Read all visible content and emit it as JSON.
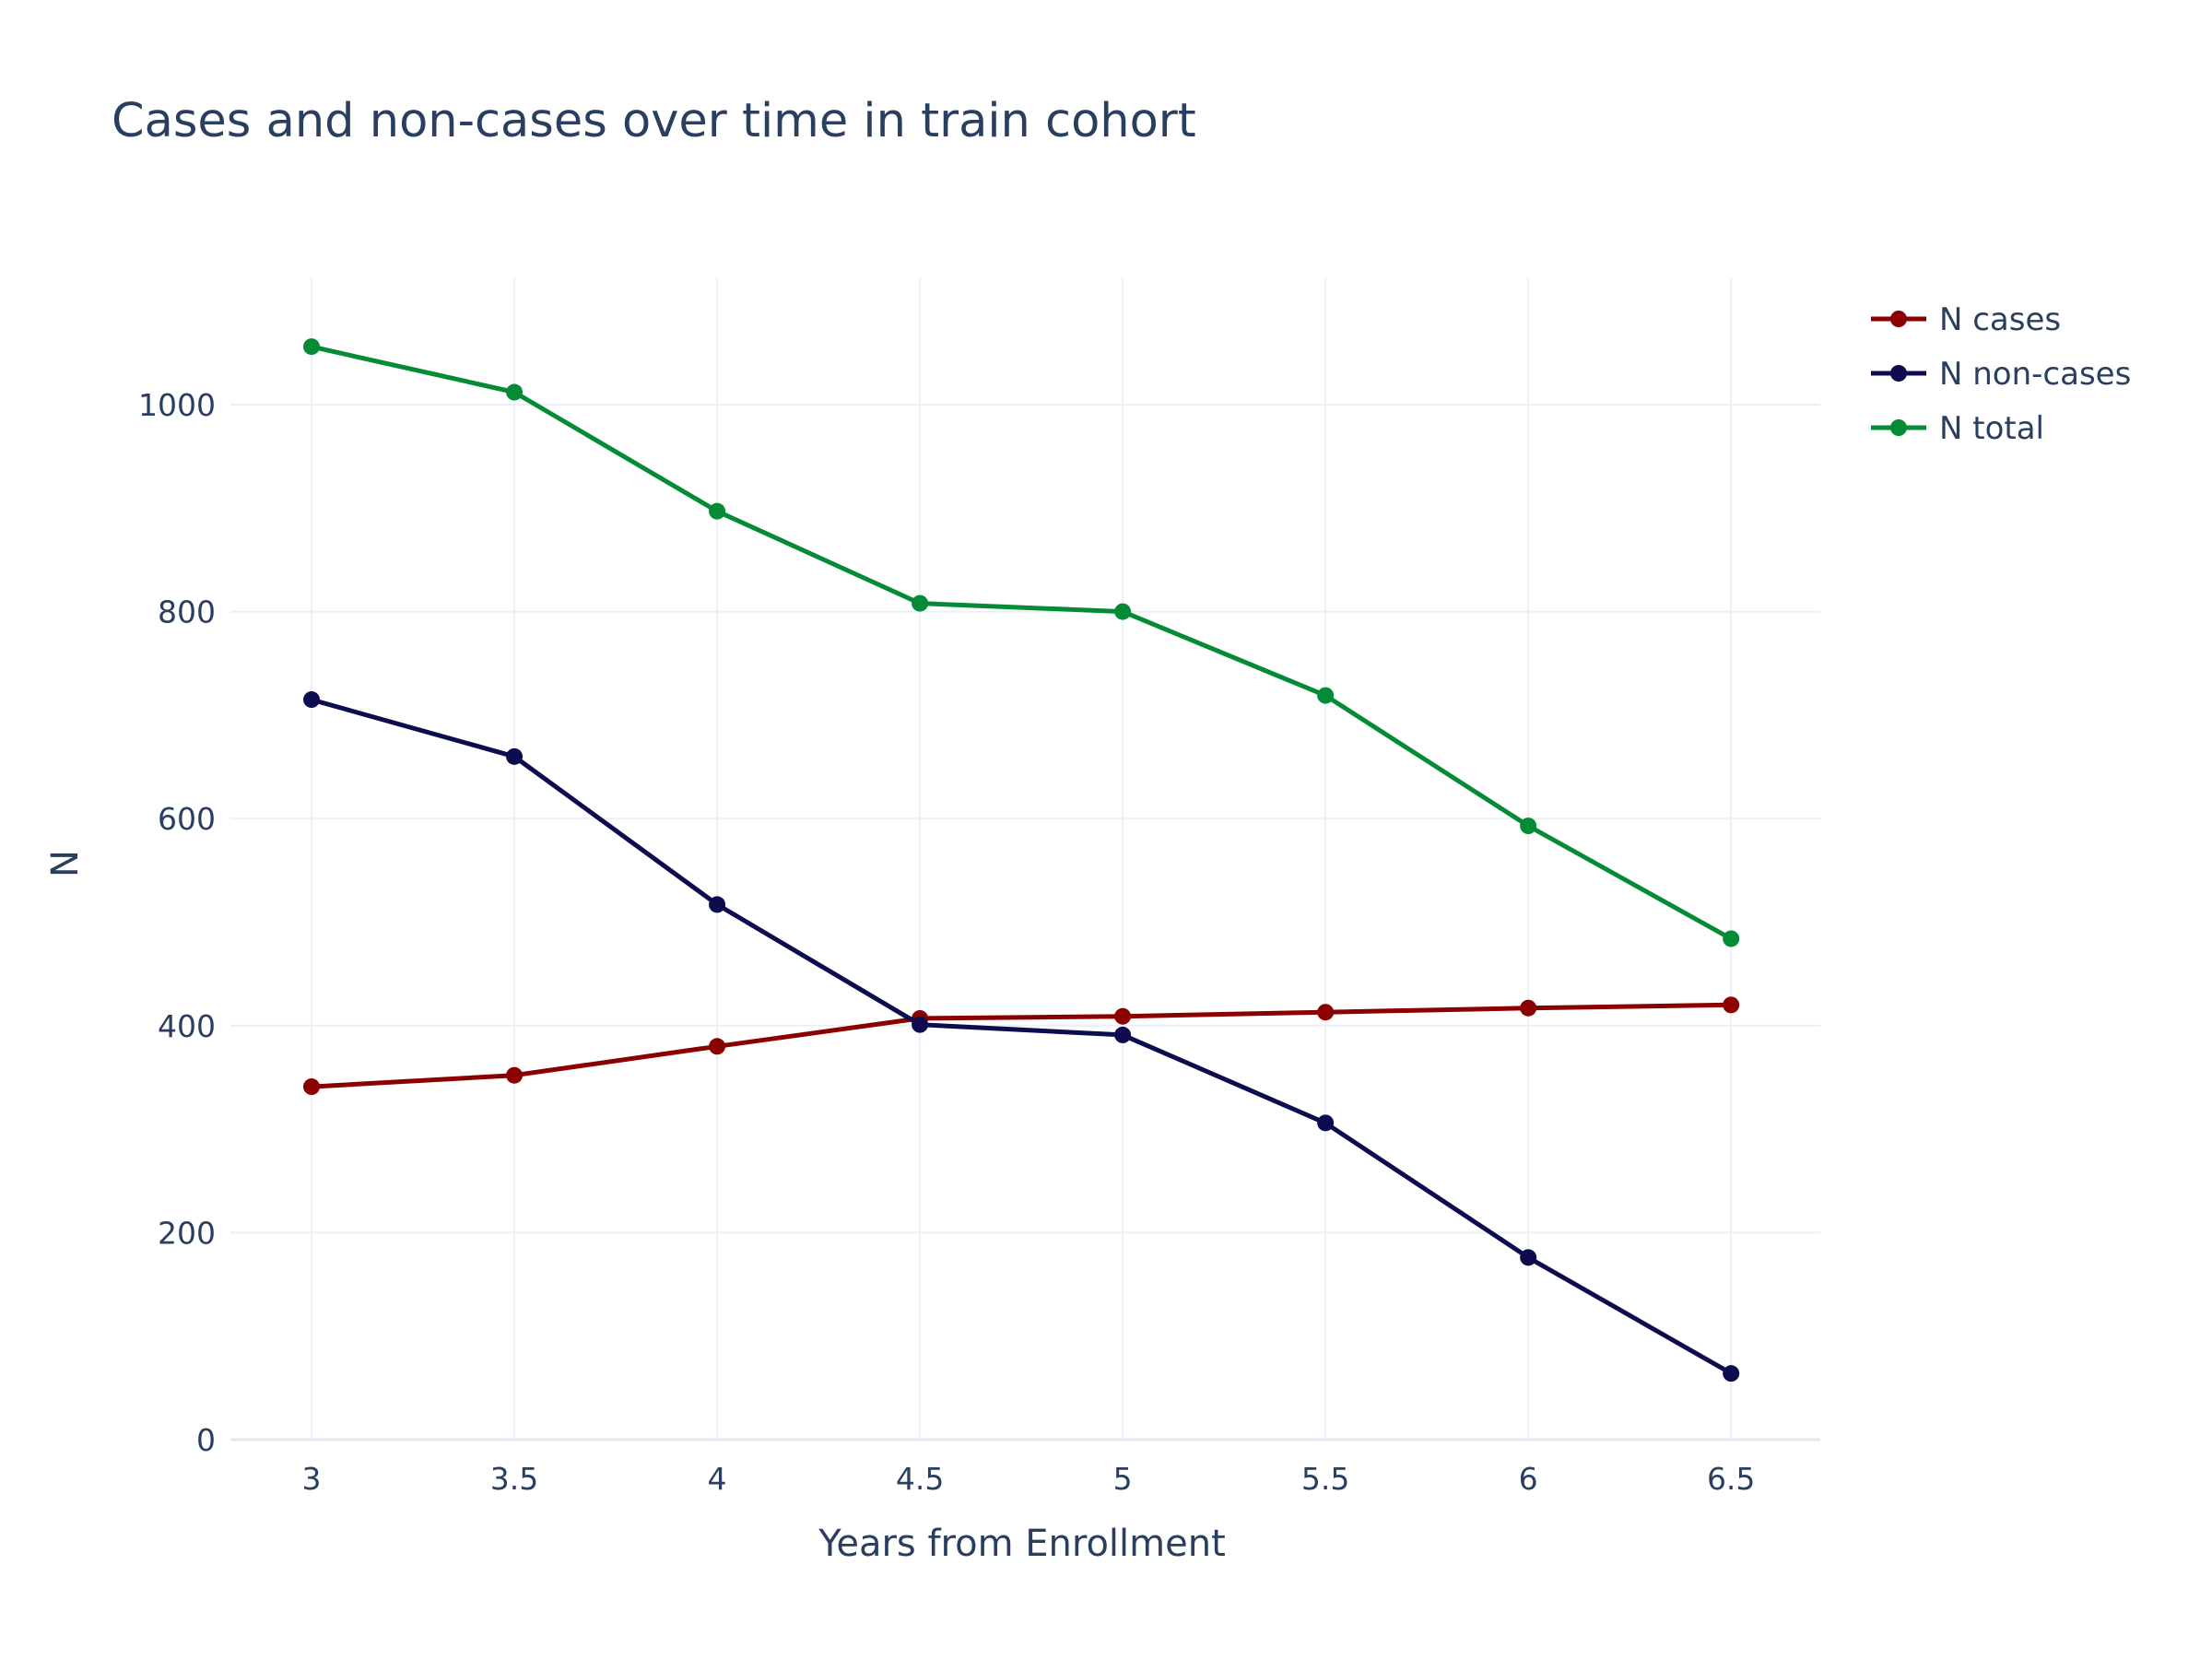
{
  "chart_data": {
    "type": "line",
    "title": "Cases and non-cases over time in train cohort",
    "xlabel": "Years from Enrollment",
    "ylabel": "N",
    "x": [
      3,
      3.5,
      4,
      4.5,
      5,
      5.5,
      6,
      6.5
    ],
    "x_tick_labels": [
      "3",
      "3.5",
      "4",
      "4.5",
      "5",
      "5.5",
      "6",
      "6.5"
    ],
    "xlim": [
      2.8,
      6.72
    ],
    "y_ticks": [
      0,
      200,
      400,
      600,
      800,
      1000
    ],
    "y_tick_labels": [
      "0",
      "200",
      "400",
      "600",
      "800",
      "1000"
    ],
    "ylim": [
      0,
      1122
    ],
    "grid": true,
    "legend_position": "top-right",
    "series": [
      {
        "name": "N cases",
        "color": "#8b0000",
        "values": [
          341,
          352,
          380,
          407,
          409,
          413,
          417,
          420
        ]
      },
      {
        "name": "N non-cases",
        "color": "#0c0c4f",
        "values": [
          715,
          660,
          517,
          401,
          391,
          306,
          176,
          64
        ]
      },
      {
        "name": "N total",
        "color": "#058a36",
        "values": [
          1056,
          1012,
          897,
          808,
          800,
          719,
          593,
          484
        ]
      }
    ]
  }
}
